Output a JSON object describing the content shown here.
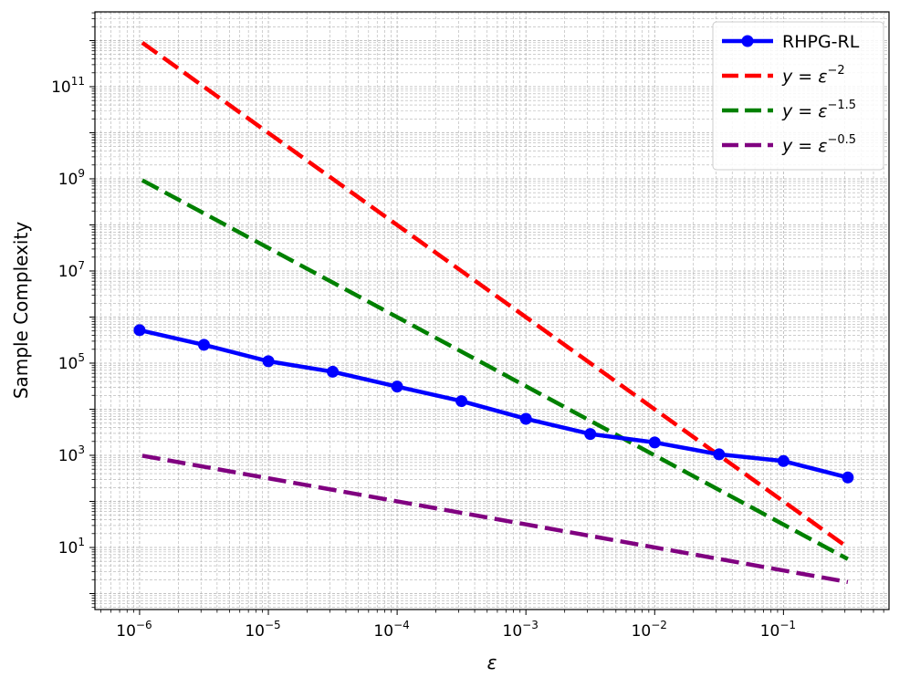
{
  "chart_data": {
    "type": "line",
    "title": "",
    "xlabel": "ε",
    "ylabel": "Sample Complexity",
    "xscale": "log",
    "yscale": "log",
    "xlim": [
      4.5e-07,
      0.66
    ],
    "ylim": [
      0.45,
      4200000000000.0
    ],
    "grid": true,
    "legend_position": "top-right",
    "x_ticks": [
      {
        "value": 1e-06,
        "base": "10",
        "exp": "−6"
      },
      {
        "value": 1e-05,
        "base": "10",
        "exp": "−5"
      },
      {
        "value": 0.0001,
        "base": "10",
        "exp": "−4"
      },
      {
        "value": 0.001,
        "base": "10",
        "exp": "−3"
      },
      {
        "value": 0.01,
        "base": "10",
        "exp": "−2"
      },
      {
        "value": 0.1,
        "base": "10",
        "exp": "−1"
      }
    ],
    "y_ticks": [
      {
        "value": 10,
        "base": "10",
        "exp": "1"
      },
      {
        "value": 1000,
        "base": "10",
        "exp": "3"
      },
      {
        "value": 100000,
        "base": "10",
        "exp": "5"
      },
      {
        "value": 10000000,
        "base": "10",
        "exp": "7"
      },
      {
        "value": 1000000000,
        "base": "10",
        "exp": "9"
      },
      {
        "value": 100000000000,
        "base": "10",
        "exp": "11"
      }
    ],
    "series": [
      {
        "name": "RHPG-RL",
        "legend_prefix": "RHPG-RL",
        "legend_exp": "",
        "color": "#0000ff",
        "style": "solid-markers",
        "x": [
          1e-06,
          3.16e-06,
          1e-05,
          3.16e-05,
          0.0001,
          0.000316,
          0.001,
          0.00316,
          0.01,
          0.0316,
          0.1,
          0.316
        ],
        "y": [
          520000,
          250000,
          110000,
          65000,
          31000,
          15000,
          6200,
          2900,
          1900,
          1050,
          750,
          330
        ]
      },
      {
        "name": "y = ε^-2",
        "legend_prefix": "y = ε",
        "legend_exp": "−2",
        "color": "#ff0000",
        "style": "dashed",
        "x": [
          1.05e-06,
          0.316
        ],
        "y": [
          900000000000.0,
          10
        ]
      },
      {
        "name": "y = ε^-1.5",
        "legend_prefix": "y = ε",
        "legend_exp": "−1.5",
        "color": "#008000",
        "style": "dashed",
        "x": [
          1.05e-06,
          0.316
        ],
        "y": [
          930000000.0,
          5.6
        ]
      },
      {
        "name": "y = ε^-0.5",
        "legend_prefix": "y = ε",
        "legend_exp": "−0.5",
        "color": "#800080",
        "style": "dashed",
        "x": [
          1.05e-06,
          0.316
        ],
        "y": [
          980,
          1.78
        ]
      }
    ]
  }
}
